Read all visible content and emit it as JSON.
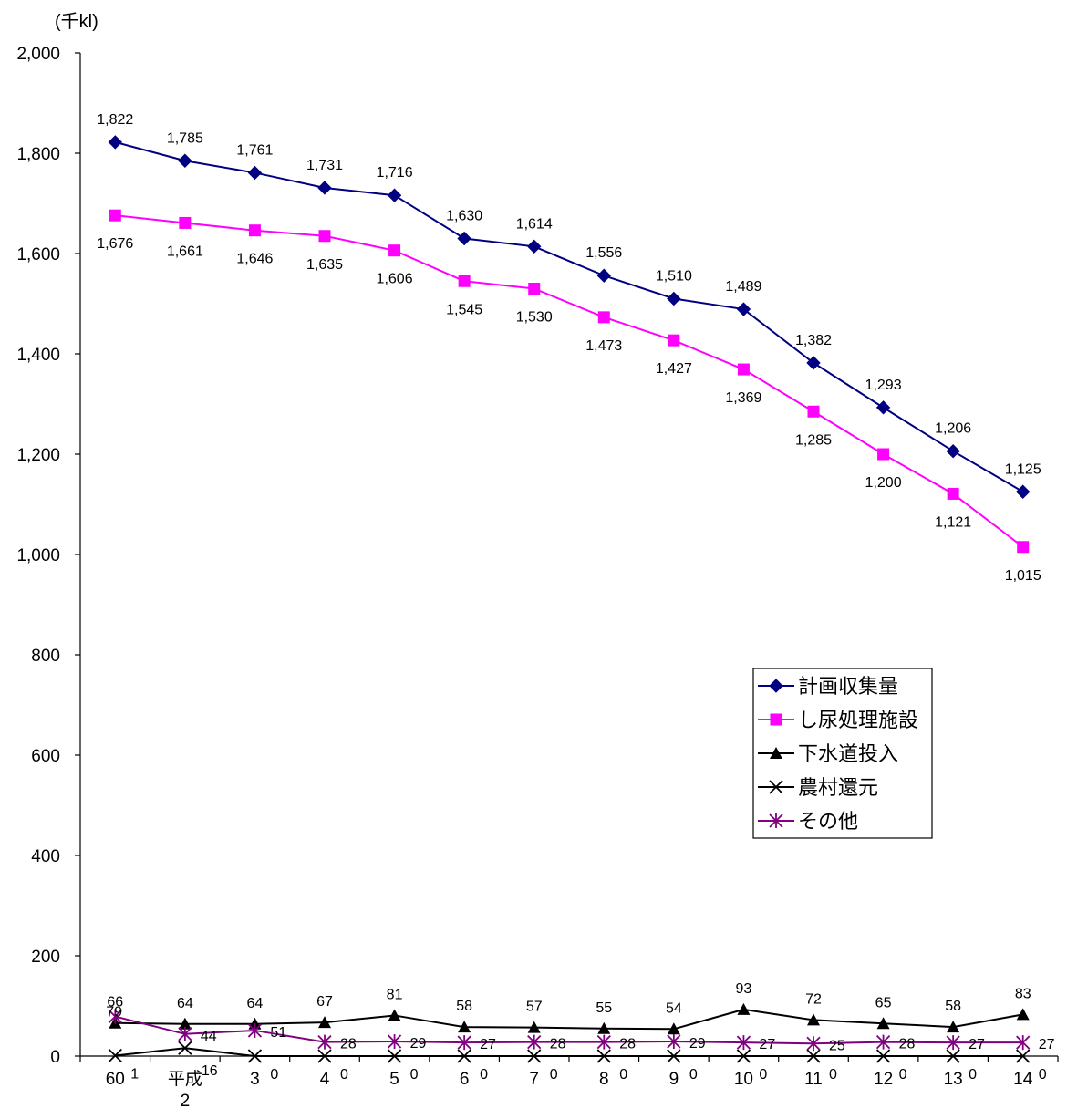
{
  "chart_data": {
    "type": "line",
    "unit_label": "(千kl)",
    "categories": [
      "60",
      "平成\n2",
      "3",
      "4",
      "5",
      "6",
      "7",
      "8",
      "9",
      "10",
      "11",
      "12",
      "13",
      "14"
    ],
    "ylim": [
      0,
      2000
    ],
    "yticks": [
      0,
      200,
      400,
      600,
      800,
      1000,
      1200,
      1400,
      1600,
      1800,
      2000
    ],
    "ytick_labels": [
      "0",
      "200",
      "400",
      "600",
      "800",
      "1,000",
      "1,200",
      "1,400",
      "1,600",
      "1,800",
      "2,000"
    ],
    "grid": false,
    "legend_position": "right",
    "series": [
      {
        "name": "計画収集量",
        "color": "#000080",
        "marker": "diamond",
        "values": [
          1822,
          1785,
          1761,
          1731,
          1716,
          1630,
          1614,
          1556,
          1510,
          1489,
          1382,
          1293,
          1206,
          1125
        ],
        "labels": [
          "1,822",
          "1,785",
          "1,761",
          "1,731",
          "1,716",
          "1,630",
          "1,614",
          "1,556",
          "1,510",
          "1,489",
          "1,382",
          "1,293",
          "1,206",
          "1,125"
        ]
      },
      {
        "name": "し尿処理施設",
        "color": "#ff00ff",
        "marker": "square",
        "values": [
          1676,
          1661,
          1646,
          1635,
          1606,
          1545,
          1530,
          1473,
          1427,
          1369,
          1285,
          1200,
          1121,
          1015
        ],
        "labels": [
          "1,676",
          "1,661",
          "1,646",
          "1,635",
          "1,606",
          "1,545",
          "1,530",
          "1,473",
          "1,427",
          "1,369",
          "1,285",
          "1,200",
          "1,121",
          "1,015"
        ]
      },
      {
        "name": "下水道投入",
        "color": "#000000",
        "marker": "triangle",
        "values": [
          66,
          64,
          64,
          67,
          81,
          58,
          57,
          55,
          54,
          93,
          72,
          65,
          58,
          83
        ],
        "labels": [
          "66",
          "64",
          "64",
          "67",
          "81",
          "58",
          "57",
          "55",
          "54",
          "93",
          "72",
          "65",
          "58",
          "83"
        ]
      },
      {
        "name": "農村還元",
        "color": "#000000",
        "marker": "x",
        "values": [
          1,
          16,
          0,
          0,
          0,
          0,
          0,
          0,
          0,
          0,
          0,
          0,
          0,
          0
        ],
        "labels": [
          "1",
          "16",
          "0",
          "0",
          "0",
          "0",
          "0",
          "0",
          "0",
          "0",
          "0",
          "0",
          "0",
          "0"
        ]
      },
      {
        "name": "その他",
        "color": "#800080",
        "marker": "star",
        "values": [
          79,
          44,
          51,
          28,
          29,
          27,
          28,
          28,
          29,
          27,
          25,
          28,
          27,
          27
        ],
        "labels": [
          "79",
          "44",
          "51",
          "28",
          "29",
          "27",
          "28",
          "28",
          "29",
          "27",
          "25",
          "28",
          "27",
          "27"
        ]
      }
    ]
  }
}
